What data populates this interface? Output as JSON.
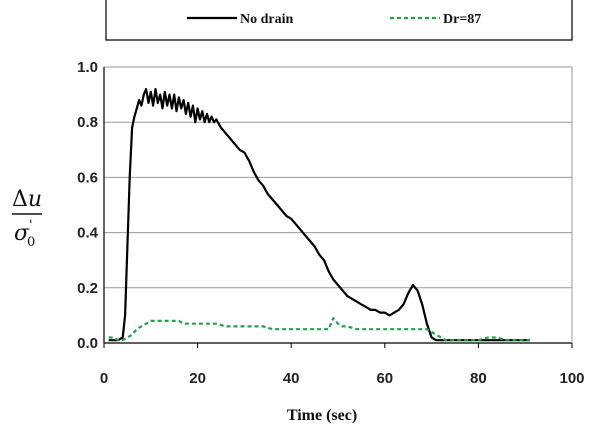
{
  "chart_data": {
    "type": "line",
    "title": "",
    "xlabel": "Time (sec)",
    "ylabel": {
      "numerator_prefix": "Δ",
      "numerator_var": "u",
      "denominator_var": "σ",
      "denominator_sub": "0",
      "denominator_prime": "'"
    },
    "xlim": [
      0,
      100
    ],
    "ylim": [
      0.0,
      1.0
    ],
    "xticks": [
      "0",
      "20",
      "40",
      "60",
      "80",
      "100"
    ],
    "yticks": [
      "0.0",
      "0.2",
      "0.4",
      "0.6",
      "0.8",
      "1.0"
    ],
    "grid": "horizontal",
    "legend_placement": "top",
    "series": [
      {
        "name": "No drain",
        "color": "#000000",
        "style": "solid",
        "x": [
          1,
          2,
          3,
          4,
          4.5,
          5,
          5.5,
          6,
          6.5,
          7,
          7.5,
          8,
          8.5,
          9,
          9.5,
          10,
          10.5,
          11,
          11.5,
          12,
          12.5,
          13,
          13.5,
          14,
          14.5,
          15,
          15.5,
          16,
          16.5,
          17,
          17.5,
          18,
          18.5,
          19,
          19.5,
          20,
          20.5,
          21,
          21.5,
          22,
          22.5,
          23,
          23.5,
          24,
          25,
          26,
          27,
          28,
          29,
          30,
          31,
          32,
          33,
          34,
          35,
          36,
          37,
          38,
          39,
          40,
          41,
          42,
          43,
          44,
          45,
          46,
          47,
          48,
          49,
          50,
          51,
          52,
          53,
          54,
          55,
          56,
          57,
          58,
          59,
          60,
          61,
          62,
          63,
          64,
          65,
          66,
          67,
          68,
          69,
          70,
          71,
          72,
          73,
          74,
          75,
          76,
          78,
          80,
          82,
          84,
          86,
          88,
          90,
          91
        ],
        "y": [
          0.01,
          0.01,
          0.01,
          0.02,
          0.1,
          0.35,
          0.6,
          0.78,
          0.82,
          0.85,
          0.88,
          0.86,
          0.9,
          0.92,
          0.87,
          0.91,
          0.86,
          0.92,
          0.87,
          0.9,
          0.85,
          0.91,
          0.86,
          0.9,
          0.85,
          0.9,
          0.84,
          0.89,
          0.85,
          0.88,
          0.83,
          0.87,
          0.82,
          0.86,
          0.8,
          0.85,
          0.81,
          0.84,
          0.8,
          0.83,
          0.8,
          0.82,
          0.8,
          0.81,
          0.78,
          0.76,
          0.74,
          0.72,
          0.7,
          0.69,
          0.66,
          0.62,
          0.59,
          0.57,
          0.54,
          0.52,
          0.5,
          0.48,
          0.46,
          0.45,
          0.43,
          0.41,
          0.39,
          0.37,
          0.35,
          0.32,
          0.3,
          0.26,
          0.23,
          0.21,
          0.19,
          0.17,
          0.16,
          0.15,
          0.14,
          0.13,
          0.12,
          0.12,
          0.11,
          0.11,
          0.1,
          0.11,
          0.12,
          0.14,
          0.18,
          0.21,
          0.19,
          0.14,
          0.07,
          0.02,
          0.01,
          0.01,
          0.01,
          0.01,
          0.01,
          0.01,
          0.01,
          0.01,
          0.01,
          0.01,
          0.01,
          0.01,
          0.01,
          0.01
        ]
      },
      {
        "name": "Dr=87",
        "color": "#22a24a",
        "style": "dashed",
        "x": [
          1,
          2,
          3,
          4,
          5,
          6,
          7,
          8,
          9,
          10,
          11,
          12,
          13,
          14,
          15,
          16,
          17,
          18,
          19,
          20,
          22,
          24,
          26,
          28,
          30,
          32,
          34,
          36,
          38,
          40,
          42,
          44,
          46,
          48,
          49,
          50,
          51,
          52,
          54,
          56,
          58,
          60,
          62,
          64,
          66,
          68,
          69,
          70,
          71,
          72,
          73,
          74,
          76,
          78,
          80,
          82,
          84,
          86,
          88,
          90,
          91
        ],
        "y": [
          0.02,
          0.02,
          0.01,
          0.01,
          0.02,
          0.03,
          0.05,
          0.06,
          0.07,
          0.08,
          0.08,
          0.08,
          0.08,
          0.08,
          0.08,
          0.08,
          0.07,
          0.07,
          0.07,
          0.07,
          0.07,
          0.07,
          0.06,
          0.06,
          0.06,
          0.06,
          0.06,
          0.05,
          0.05,
          0.05,
          0.05,
          0.05,
          0.05,
          0.05,
          0.09,
          0.07,
          0.06,
          0.06,
          0.05,
          0.05,
          0.05,
          0.05,
          0.05,
          0.05,
          0.05,
          0.05,
          0.05,
          0.04,
          0.03,
          0.02,
          0.01,
          0.01,
          0.01,
          0.01,
          0.01,
          0.02,
          0.02,
          0.01,
          0.01,
          0.01,
          0.01
        ]
      }
    ]
  }
}
